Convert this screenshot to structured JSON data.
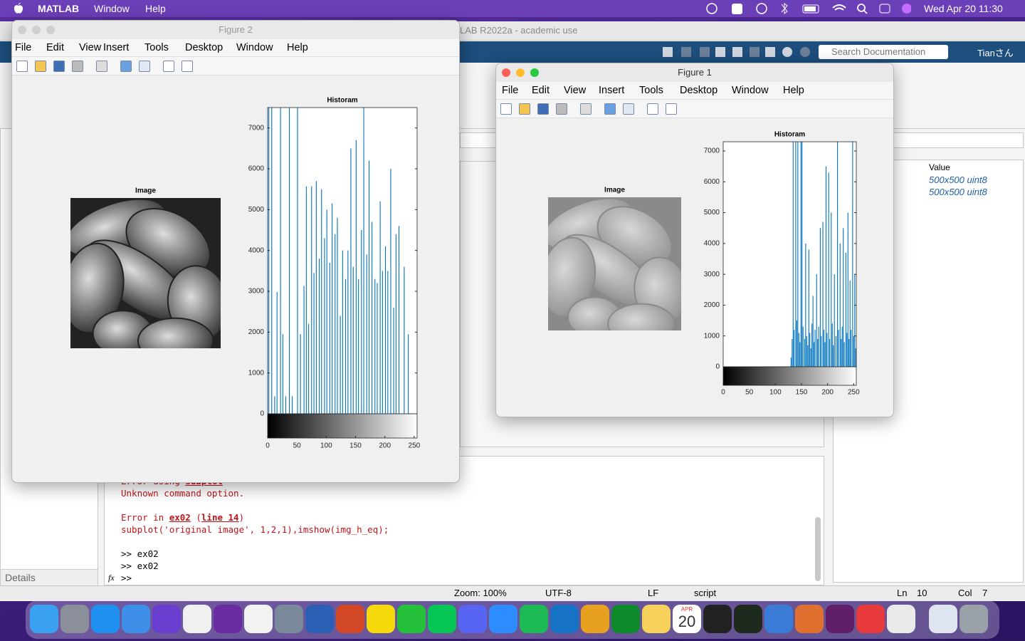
{
  "menubar": {
    "app": "MATLAB",
    "menus": [
      "Window",
      "Help"
    ],
    "clock": "Wed Apr 20  11:30"
  },
  "matlab": {
    "title": "LAB R2022a - academic use",
    "search": "Search Documentation",
    "user": "Tianさん",
    "workspace": {
      "header": "Value",
      "rows": [
        "500x500 uint8",
        "500x500 uint8"
      ]
    },
    "command_window": {
      "error_using": [
        "Error using ",
        "subplot"
      ],
      "message": "Unknown command option.",
      "error_in": [
        "Error in ",
        "ex02",
        " (",
        "line 14",
        ")"
      ],
      "code": "subplot('original image', 1,2,1),imshow(img_h_eq);",
      "history": [
        ">> ex02",
        ">> ex02"
      ],
      "prompt": ">>",
      "fx": "fx"
    },
    "details": "Details",
    "status": {
      "zoom": "Zoom: 100%",
      "encoding": "UTF-8",
      "eol": "LF",
      "type": "script",
      "ln_label": "Ln",
      "ln": "10",
      "col_label": "Col",
      "col": "7"
    }
  },
  "figures": [
    {
      "title": "Figure 2",
      "menus": [
        "File",
        "Edit",
        "View",
        "Insert",
        "Tools",
        "Desktop",
        "Window",
        "Help"
      ],
      "image_title": "Image"
    },
    {
      "title": "Figure 1",
      "menus": [
        "File",
        "Edit",
        "View",
        "Insert",
        "Tools",
        "Desktop",
        "Window",
        "Help"
      ],
      "image_title": "Image"
    }
  ],
  "chart_data": [
    {
      "type": "bar",
      "title": "Historam",
      "color": "#0072bd",
      "x": [
        2,
        7,
        12,
        16,
        22,
        26,
        31,
        37,
        42,
        51,
        56,
        62,
        66,
        70,
        75,
        79,
        83,
        88,
        92,
        97,
        101,
        106,
        110,
        115,
        119,
        124,
        128,
        133,
        137,
        142,
        146,
        151,
        155,
        160,
        164,
        169,
        173,
        178,
        183,
        187,
        192,
        196,
        201,
        205,
        210,
        215,
        219,
        224,
        233,
        240
      ],
      "values": [
        7500,
        7500,
        430,
        2980,
        7500,
        1950,
        430,
        7500,
        430,
        7500,
        1950,
        3130,
        5570,
        2200,
        5570,
        3450,
        5700,
        3800,
        5500,
        4300,
        5000,
        3700,
        5150,
        4400,
        4800,
        2400,
        4000,
        3300,
        4000,
        6500,
        3600,
        6700,
        3300,
        4500,
        7500,
        3900,
        6200,
        4700,
        3300,
        3200,
        5200,
        3500,
        4100,
        3500,
        6000,
        2600,
        4400,
        4600,
        3600,
        1950
      ],
      "xlim": [
        0,
        255
      ],
      "ylim": [
        0,
        7500
      ],
      "xticks": [
        0,
        50,
        100,
        150,
        200,
        250
      ],
      "yticks": [
        0,
        1000,
        2000,
        3000,
        4000,
        5000,
        6000,
        7000
      ]
    },
    {
      "type": "bar",
      "title": "Historam",
      "color": "#0072bd",
      "x": [
        130,
        132,
        134,
        136,
        139,
        141,
        143,
        145,
        147,
        149,
        151,
        153,
        156,
        158,
        160,
        162,
        164,
        166,
        168,
        170,
        172,
        174,
        176,
        179,
        181,
        183,
        186,
        188,
        191,
        193,
        195,
        197,
        199,
        202,
        204,
        207,
        209,
        211,
        213,
        216,
        219,
        221,
        224,
        226,
        228,
        230,
        232,
        235,
        237,
        239,
        241,
        243,
        245,
        248,
        250,
        252,
        254
      ],
      "values": [
        300,
        900,
        7300,
        1200,
        7300,
        1500,
        7300,
        1100,
        800,
        7300,
        7300,
        1300,
        900,
        4000,
        1000,
        700,
        3800,
        1100,
        600,
        1400,
        2300,
        800,
        1200,
        3000,
        900,
        1300,
        4500,
        1000,
        4700,
        1200,
        800,
        6500,
        1100,
        6300,
        900,
        5000,
        1400,
        700,
        3000,
        1000,
        7300,
        1200,
        4000,
        900,
        1300,
        4500,
        800,
        3700,
        1100,
        5000,
        900,
        2800,
        1200,
        7300,
        1000,
        3000,
        600
      ],
      "xlim": [
        0,
        255
      ],
      "ylim": [
        0,
        7300
      ],
      "xticks": [
        0,
        50,
        100,
        150,
        200,
        250
      ],
      "yticks": [
        0,
        1000,
        2000,
        3000,
        4000,
        5000,
        6000,
        7000
      ]
    }
  ],
  "dock": {
    "calendar_month": "APR",
    "calendar_day": "20"
  }
}
